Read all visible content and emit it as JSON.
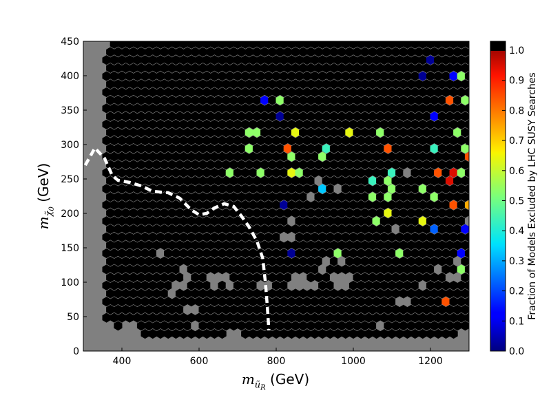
{
  "chart_data": {
    "type": "heatmap",
    "subtype": "hexbin",
    "xlabel_symbol": "m",
    "xlabel_subscript": "ũ",
    "xlabel_subsubscript": "R",
    "xlabel_unit": " (GeV)",
    "ylabel_symbol": "m",
    "ylabel_subscript": "χ̃",
    "ylabel_subsubscript": "0",
    "ylabel_unit": " (GeV)",
    "xlim": [
      300,
      1300
    ],
    "ylim": [
      0,
      450
    ],
    "xticks": [
      "400",
      "600",
      "800",
      "1000",
      "1200"
    ],
    "yticks": [
      "0",
      "50",
      "100",
      "150",
      "200",
      "250",
      "300",
      "350",
      "400",
      "450"
    ],
    "background_color": "#808080",
    "colorbar": {
      "label": "Fraction of Models Excluded by LHC SUSY Searches",
      "range": [
        0.0,
        1.0
      ],
      "ticks": [
        "0.0",
        "0.1",
        "0.2",
        "0.3",
        "0.4",
        "0.5",
        "0.6",
        "0.7",
        "0.8",
        "0.9",
        "1.0"
      ],
      "colormap": "jet",
      "over_color": "#000000"
    },
    "hex_grid": {
      "x_start": 360,
      "x_step": 20,
      "rows_y_start": 25,
      "row_step": 11.7,
      "codes": "0 = excluded fraction 1.0 (black), G = no models (gray), a-j = fraction 0.0-0.9, . = empty",
      "rows": [
        ".....00000000000..0000000000000000000000000000...",
        ".0..0000000G00000000000000000000000G0000000000000",
        "0000000000000000000000000000000000000000000000000",
        "0000000000GG000000000000000000000000000000000000i",
        "00000000000000000000000000000000000000GG0000i000i",
        "00000000G00000000000000000000000000000000000000G0",
        "000000000GG000G0G000GG00GGGG00GG000000000G0000000",
        "0000000000G00GGG00000000GG000GGG000000000000GG000",
        "0000000000G00000000000000000G00000000000000G00f00",
        "0000000000000000000000000000G0G00000000000000G0f0",
        "0000000G0000000000000000a00000f0000000f0000000b00",
        "0000000000000000000000000000000000000000000000000",
        "00000000000000000000000GG00000000000000000000000f",
        "0000000000000000000000000000000000000G0000c000b0f",
        "000000000000000000000000G0000000000f00000g00000G0",
        "000000000000000000000000000000000000g000000000000",
        "00000000000000000000000a000000000000000000000i0h0",
        "00000000000000000000000000G0000000f0f00000f00000G",
        "0000000000000000000000000000d0G000000f000f0000000",
        "000000000000000000000000000G000000e0f0000000j0000",
        "0000000000000000f000f000gf00000000000e0G000i0jf00",
        "00000000000000000000000000000000000000000000000G0",
        "000000000000000000000000f000f000000000000000000i0",
        "000000000000000000f0000i0000e0000000i00000e000f00",
        "0000000000000000000000000000000000000000000000000",
        "000000000000000000ff0000g000000g000f000000000f000",
        "000000000000000000000000000000000000000000000000c",
        "0000000000000000000000a0000000000000000000b0000f0",
        "000000000000000000000000000000000000000000000000i",
        "00000000000000000000b0f000000000000000000000i0f00",
        "0000000000000000000000000000000000000000000000000",
        "000000000000000000000000000000000000000000000000b",
        "00000000000000000000000000000000000000000a000bf00",
        "000000000000000000000000000000000000000000000000f",
        "000000000000000000000000000000000000000000a000000",
        "0000000000000000000000000000000000000000000000000",
        ".000000000000000000000000000000000000000000000000"
      ]
    },
    "excluded_boundary": [
      [
        305,
        270
      ],
      [
        330,
        295
      ],
      [
        355,
        280
      ],
      [
        375,
        255
      ],
      [
        390,
        248
      ],
      [
        420,
        245
      ],
      [
        450,
        240
      ],
      [
        480,
        232
      ],
      [
        520,
        230
      ],
      [
        550,
        222
      ],
      [
        580,
        205
      ],
      [
        600,
        198
      ],
      [
        620,
        200
      ],
      [
        640,
        208
      ],
      [
        665,
        214
      ],
      [
        690,
        210
      ],
      [
        710,
        196
      ],
      [
        730,
        180
      ],
      [
        750,
        160
      ],
      [
        765,
        135
      ],
      [
        772,
        100
      ],
      [
        777,
        65
      ],
      [
        781,
        30
      ]
    ]
  }
}
